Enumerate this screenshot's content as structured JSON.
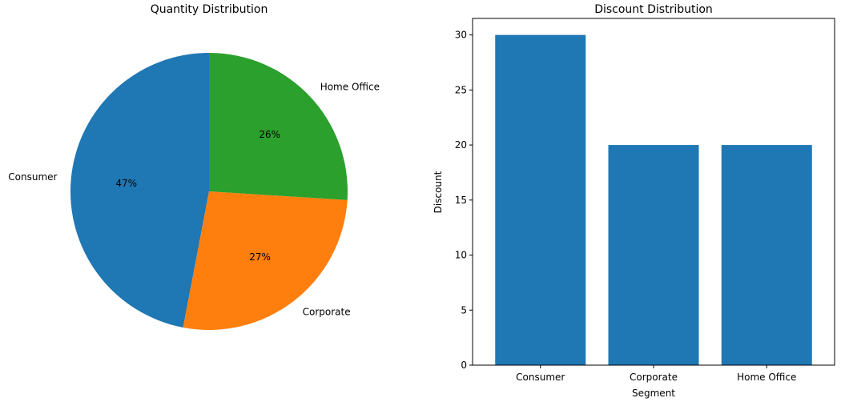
{
  "chart_data": [
    {
      "type": "pie",
      "title": "Quantity Distribution",
      "labels": [
        "Consumer",
        "Corporate",
        "Home Office"
      ],
      "values": [
        47,
        27,
        26
      ],
      "pct_labels": [
        "47%",
        "27%",
        "26%"
      ],
      "colors": [
        "#1f77b4",
        "#ff7f0e",
        "#2ca02c"
      ],
      "start_angle_deg": 90,
      "direction": "counterclockwise"
    },
    {
      "type": "bar",
      "title": "Discount Distribution",
      "categories": [
        "Consumer",
        "Corporate",
        "Home Office"
      ],
      "values": [
        30,
        20,
        20
      ],
      "xlabel": "Segment",
      "ylabel": "Discount",
      "ylim": [
        0,
        31.5
      ],
      "yticks": [
        0,
        5,
        10,
        15,
        20,
        25,
        30
      ],
      "color": "#1f77b4",
      "grid": false,
      "legend": "none"
    }
  ]
}
